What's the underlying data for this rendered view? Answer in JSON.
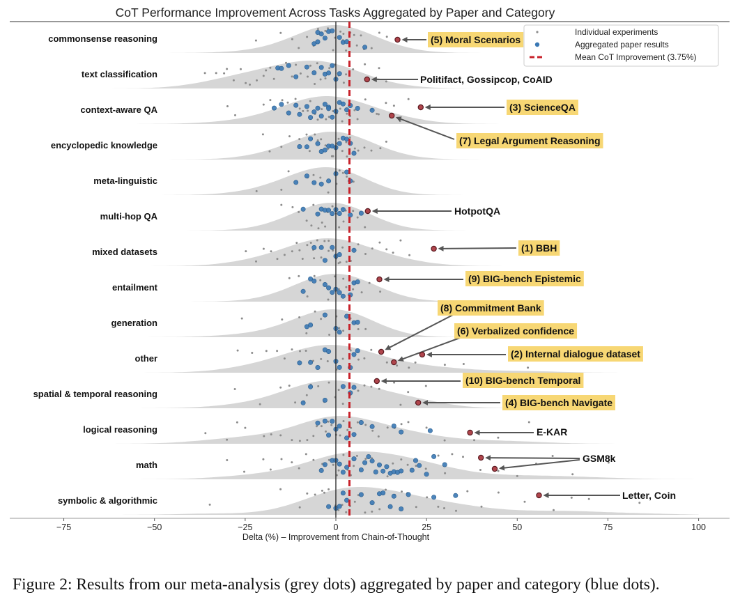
{
  "chart_data": {
    "type": "scatter",
    "title": "CoT Performance Improvement Across Tasks Aggregated by Paper and Category",
    "xlabel": "Delta (%) – Improvement from Chain-of-Thought",
    "ylabel": "",
    "xlim": [
      -80,
      100
    ],
    "xticks": [
      -75,
      -50,
      -25,
      0,
      25,
      50,
      75,
      100
    ],
    "xtick_labels": [
      "−75",
      "−50",
      "−25",
      "0",
      "25",
      "50",
      "75",
      "100"
    ],
    "grid": false,
    "legend_position": "top-right",
    "legend": [
      {
        "label": "Individual experiments",
        "marker": "small-grey-dot"
      },
      {
        "label": "Aggregated paper results",
        "marker": "blue-dot"
      },
      {
        "label": "Mean CoT Improvement (3.75%)",
        "marker": "red-dashed-line"
      }
    ],
    "mean_improvement": 3.75,
    "colors": {
      "individual": "#8c8c8c",
      "aggregated": "#3a78b4",
      "mean_line": "#c8222b",
      "highlight": "#b0454c",
      "density": "#d6d6d6",
      "label_box": "#f7d774"
    },
    "categories": [
      {
        "name": "commonsense reasoning",
        "individual": [
          -22,
          -15,
          -12,
          -10,
          -8,
          -6,
          -5,
          -4,
          -3,
          -3,
          -2,
          -1,
          0,
          1,
          2,
          2,
          3,
          4,
          5,
          6,
          7,
          8,
          10,
          12,
          14
        ],
        "aggregated": [
          -6,
          -5,
          -5,
          -4,
          -3,
          -2,
          -1,
          1,
          2,
          3,
          8
        ]
      },
      {
        "name": "text classification",
        "individual": [
          -36,
          -33,
          -31,
          -30,
          -28,
          -26,
          -25,
          -24,
          -22,
          -20,
          -19,
          -18,
          -17,
          -16,
          -14,
          -12,
          -11,
          -10,
          -8,
          -7,
          -6,
          -5,
          -4,
          -3,
          -2,
          -1,
          0,
          1,
          2,
          3,
          5,
          8,
          12,
          14
        ],
        "aggregated": [
          -16,
          -15,
          -13,
          -11,
          -8,
          -6,
          -4,
          -3,
          -2,
          -1,
          0,
          1
        ]
      },
      {
        "name": "context-aware QA",
        "individual": [
          -30,
          -28,
          -20,
          -18,
          -15,
          -13,
          -11,
          -10,
          -9,
          -8,
          -7,
          -6,
          -5,
          -4,
          -3,
          -2,
          -2,
          -1,
          0,
          1,
          2,
          3,
          4,
          5,
          6,
          8,
          10,
          11,
          12,
          14,
          16,
          18,
          20
        ],
        "aggregated": [
          -17,
          -15,
          -13,
          -11,
          -10,
          -8,
          -7,
          -6,
          -5,
          -4,
          -3,
          -2,
          -2,
          -1,
          0,
          1,
          2,
          3,
          4,
          6,
          10
        ]
      },
      {
        "name": "encyclopedic knowledge",
        "individual": [
          -20,
          -18,
          -15,
          -13,
          -10,
          -8,
          -7,
          -6,
          -5,
          -4,
          -3,
          -2,
          -1,
          -1,
          0,
          1,
          2,
          3,
          3,
          4,
          5,
          6,
          8,
          10,
          12,
          14
        ],
        "aggregated": [
          -10,
          -8,
          -7,
          -5,
          -4,
          -3,
          -2,
          -1,
          0,
          1,
          2,
          3,
          4,
          5
        ]
      },
      {
        "name": "meta-linguistic",
        "individual": [
          -22,
          -15,
          -13,
          -8,
          -6,
          -4,
          -2,
          0,
          1,
          2,
          3,
          5
        ],
        "aggregated": [
          -11,
          -8,
          -6,
          -4,
          -2,
          0,
          3,
          4
        ]
      },
      {
        "name": "multi-hop QA",
        "individual": [
          -15,
          -12,
          -10,
          -8,
          -7,
          -6,
          -5,
          -4,
          -3,
          -2,
          -1,
          0,
          1,
          2,
          2,
          3,
          4,
          5,
          6,
          8
        ],
        "aggregated": [
          -9,
          -5,
          -4,
          -3,
          -2,
          -1,
          0,
          1,
          2,
          4,
          7
        ]
      },
      {
        "name": "mixed datasets",
        "individual": [
          -25,
          -22,
          -20,
          -18,
          -16,
          -14,
          -12,
          -11,
          -10,
          -9,
          -8,
          -7,
          -6,
          -6,
          -5,
          -4,
          -3,
          -2,
          -2,
          -1,
          0,
          1,
          1,
          2,
          3,
          4,
          5,
          6,
          8,
          10,
          12,
          14,
          16,
          18,
          20
        ],
        "aggregated": [
          -6,
          -4,
          -3,
          -1,
          0,
          1,
          5
        ]
      },
      {
        "name": "entailment",
        "individual": [
          -13,
          -10,
          -8,
          -6,
          -4,
          -2,
          0,
          1,
          2,
          3,
          4,
          5,
          7,
          9,
          12
        ],
        "aggregated": [
          -9,
          -7,
          -6,
          -3,
          -2,
          -1,
          0,
          1,
          2,
          4,
          5,
          6
        ]
      },
      {
        "name": "generation",
        "individual": [
          -26,
          -15,
          -10,
          -8,
          -6,
          -4,
          -2,
          0,
          1,
          2,
          4,
          6,
          8
        ],
        "aggregated": [
          -8,
          -7,
          -3,
          0,
          1,
          3,
          5,
          6
        ]
      },
      {
        "name": "other",
        "individual": [
          -27,
          -23,
          -19,
          -16,
          -14,
          -12,
          -10,
          -8,
          -6,
          -4,
          -2,
          0,
          2,
          4,
          6,
          8,
          10,
          14,
          17,
          20,
          22,
          30,
          35,
          53
        ],
        "aggregated": [
          -10,
          -7,
          -5,
          -3,
          -2,
          0,
          1,
          4,
          5,
          6
        ]
      },
      {
        "name": "spatial & temporal reasoning",
        "individual": [
          -28,
          -21,
          -15,
          -13,
          -11,
          -9,
          -8,
          -7,
          -5,
          -3,
          -2,
          0,
          1,
          2,
          4,
          6,
          8,
          10,
          12,
          16,
          18,
          20,
          22,
          25
        ],
        "aggregated": [
          -9,
          -7,
          -3,
          2,
          4,
          5
        ]
      },
      {
        "name": "logical reasoning",
        "individual": [
          -36,
          -30,
          -27,
          -25,
          -20,
          -18,
          -15,
          -12,
          -10,
          -8,
          -6,
          -5,
          -4,
          -3,
          -2,
          -1,
          0,
          1,
          2,
          3,
          4,
          6,
          8,
          10,
          12,
          14,
          16,
          18,
          20,
          25,
          30,
          38,
          45,
          53
        ],
        "aggregated": [
          -5,
          -3,
          -2,
          -1,
          0,
          1,
          3,
          5,
          7,
          10,
          16,
          18,
          26
        ]
      },
      {
        "name": "math",
        "individual": [
          -30,
          -25,
          -20,
          -18,
          -15,
          -12,
          -10,
          -8,
          -6,
          -4,
          -3,
          -2,
          -1,
          0,
          1,
          2,
          3,
          4,
          5,
          6,
          8,
          10,
          12,
          14,
          16,
          18,
          20,
          22,
          25,
          28,
          30,
          32,
          35,
          40,
          45,
          50,
          55,
          60,
          65,
          75
        ],
        "aggregated": [
          -4,
          -3,
          -1,
          0,
          1,
          2,
          3,
          5,
          7,
          8,
          9,
          10,
          11,
          12,
          13,
          14,
          15,
          16,
          17,
          18,
          21,
          22,
          23,
          25,
          27,
          30
        ]
      },
      {
        "name": "symbolic & algorithmic",
        "individual": [
          -35,
          -15,
          -10,
          -8,
          -6,
          -4,
          -3,
          -2,
          0,
          1,
          2,
          3,
          4,
          5,
          6,
          8,
          10,
          12,
          14,
          16,
          18,
          20,
          22,
          25,
          28,
          30,
          33,
          36,
          40,
          45,
          52,
          60,
          65,
          70,
          84
        ],
        "aggregated": [
          -2,
          0,
          1,
          2,
          3,
          7,
          10,
          12,
          13,
          15,
          16,
          18,
          20,
          27,
          33
        ]
      }
    ],
    "annotations": [
      {
        "category": "commonsense reasoning",
        "x": [
          17
        ],
        "label": "(5) Moral Scenarios",
        "boxed": true
      },
      {
        "category": "text classification",
        "x": [
          8.6
        ],
        "label": "Politifact, Gossipcop, CoAID",
        "boxed": false
      },
      {
        "category": "context-aware QA",
        "x": [
          23.4
        ],
        "label": "(3) ScienceQA",
        "boxed": true
      },
      {
        "category": "context-aware QA",
        "x": [
          15.4
        ],
        "label": "(7) Legal Argument Reasoning",
        "boxed": true
      },
      {
        "category": "multi-hop QA",
        "x": [
          8.8
        ],
        "label": "HotpotQA",
        "boxed": false
      },
      {
        "category": "mixed datasets",
        "x": [
          27
        ],
        "label": "(1) BBH",
        "boxed": true
      },
      {
        "category": "entailment",
        "x": [
          12
        ],
        "label": "(9) BIG-bench Epistemic",
        "boxed": true
      },
      {
        "category": "other",
        "x": [
          12.5
        ],
        "label": "(8) Commitment Bank",
        "boxed": true
      },
      {
        "category": "other",
        "x": [
          16
        ],
        "label": "(6) Verbalized confidence",
        "boxed": true
      },
      {
        "category": "other",
        "x": [
          23.8
        ],
        "label": "(2) Internal dialogue dataset",
        "boxed": true
      },
      {
        "category": "spatial & temporal reasoning",
        "x": [
          11.3
        ],
        "label": "(10) BIG-bench Temporal",
        "boxed": true
      },
      {
        "category": "spatial & temporal reasoning",
        "x": [
          22.7
        ],
        "label": "(4) BIG-bench Navigate",
        "boxed": true
      },
      {
        "category": "logical reasoning",
        "x": [
          37
        ],
        "label": "E-KAR",
        "boxed": false
      },
      {
        "category": "math",
        "x": [
          40,
          43.8
        ],
        "label": "GSM8k",
        "boxed": false
      },
      {
        "category": "symbolic & algorithmic",
        "x": [
          56
        ],
        "label": "Letter, Coin",
        "boxed": false
      }
    ]
  },
  "caption": "Figure 2: Results from our meta-analysis (grey dots) aggregated by paper and category (blue dots)."
}
